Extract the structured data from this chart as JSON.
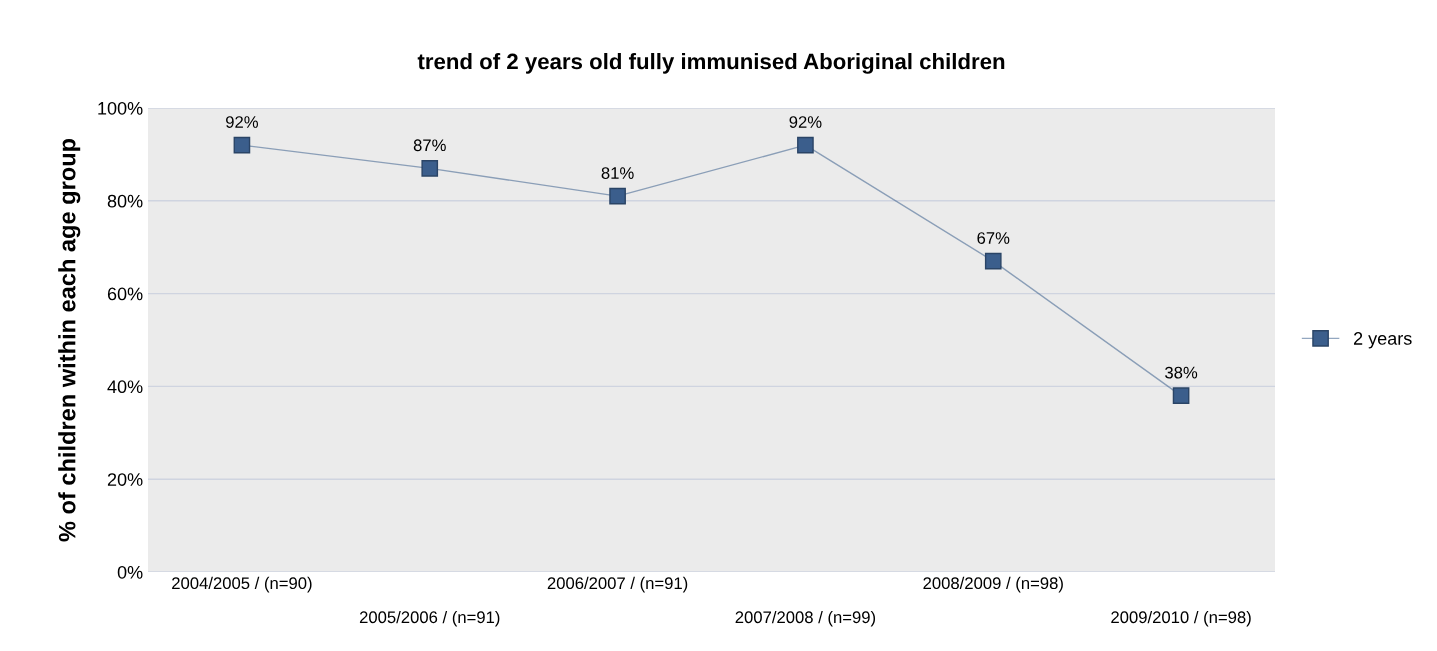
{
  "chart_data": {
    "type": "line",
    "title": "trend of 2 years old fully immunised Aboriginal children",
    "ylabel": "% of children within each age group",
    "categories": [
      "2004/2005 / (n=90)",
      "2005/2006 / (n=91)",
      "2006/2007 / (n=91)",
      "2007/2008 / (n=99)",
      "2008/2009 / (n=98)",
      "2009/2010 / (n=98)"
    ],
    "series": [
      {
        "name": "2 years",
        "color": "#3b5e8c",
        "values": [
          92,
          87,
          81,
          92,
          67,
          38
        ],
        "value_labels": [
          "92%",
          "87%",
          "81%",
          "92%",
          "67%",
          "38%"
        ]
      }
    ],
    "ylim": [
      0,
      100
    ],
    "yticks": [
      {
        "value": 0,
        "label": "0%"
      },
      {
        "value": 20,
        "label": "20%"
      },
      {
        "value": 40,
        "label": "40%"
      },
      {
        "value": 60,
        "label": "60%"
      },
      {
        "value": 80,
        "label": "80%"
      },
      {
        "value": 100,
        "label": "100%"
      }
    ],
    "grid": "y",
    "legend": "right",
    "marker": "square",
    "line_style": "solid"
  }
}
